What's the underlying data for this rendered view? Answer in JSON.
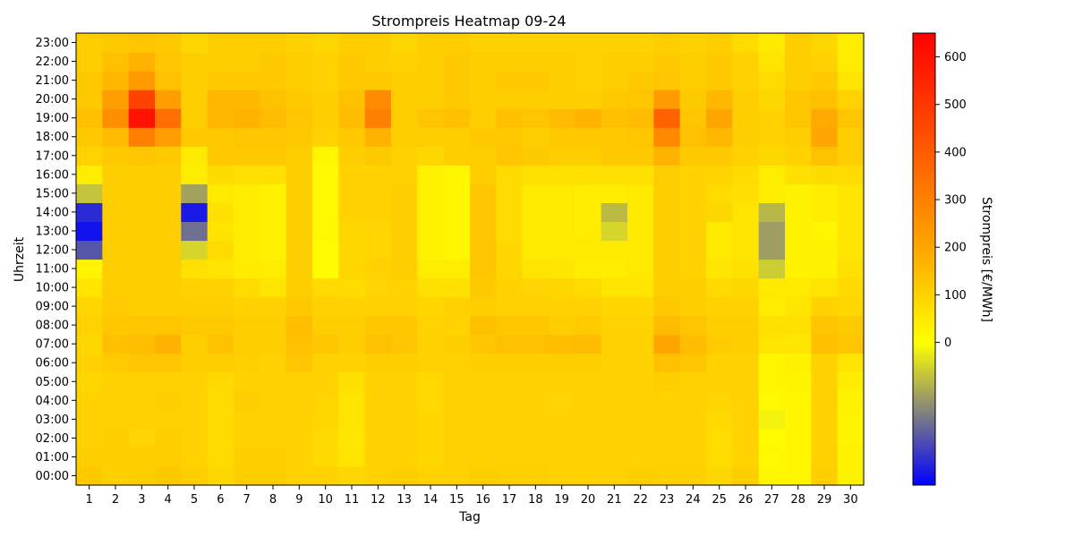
{
  "chart_data": {
    "type": "heatmap",
    "title": "Strompreis Heatmap 09-24",
    "xlabel": "Tag",
    "ylabel": "Uhrzeit",
    "colorbar_label": "Strompreis [€/MWh]",
    "x_categories": [
      "1",
      "2",
      "3",
      "4",
      "5",
      "6",
      "7",
      "8",
      "9",
      "10",
      "11",
      "12",
      "13",
      "14",
      "15",
      "16",
      "17",
      "18",
      "19",
      "20",
      "21",
      "22",
      "23",
      "24",
      "25",
      "26",
      "27",
      "28",
      "29",
      "30"
    ],
    "y_categories": [
      "00:00",
      "01:00",
      "02:00",
      "03:00",
      "04:00",
      "05:00",
      "06:00",
      "07:00",
      "08:00",
      "09:00",
      "10:00",
      "11:00",
      "12:00",
      "13:00",
      "14:00",
      "15:00",
      "16:00",
      "17:00",
      "18:00",
      "19:00",
      "20:00",
      "21:00",
      "22:00",
      "23:00"
    ],
    "value_range": [
      -300,
      650
    ],
    "colorbar_ticks": [
      0,
      100,
      200,
      300,
      400,
      500,
      600
    ],
    "colorscale": [
      {
        "value": -300,
        "color": "#0000ff"
      },
      {
        "value": -150,
        "color": "#808080"
      },
      {
        "value": 0,
        "color": "#ffff00"
      },
      {
        "value": 200,
        "color": "#ffa500"
      },
      {
        "value": 650,
        "color": "#ff0000"
      }
    ],
    "values": [
      [
        120,
        105,
        110,
        120,
        110,
        90,
        110,
        110,
        100,
        100,
        90,
        100,
        110,
        100,
        100,
        110,
        105,
        105,
        100,
        100,
        100,
        110,
        105,
        105,
        90,
        110,
        20,
        20,
        110,
        30
      ],
      [
        110,
        110,
        110,
        110,
        100,
        80,
        110,
        110,
        100,
        85,
        60,
        100,
        100,
        90,
        100,
        100,
        100,
        100,
        100,
        100,
        100,
        100,
        100,
        100,
        80,
        100,
        15,
        20,
        100,
        30
      ],
      [
        100,
        110,
        95,
        110,
        100,
        80,
        100,
        100,
        100,
        85,
        55,
        100,
        100,
        90,
        100,
        100,
        100,
        100,
        100,
        100,
        100,
        100,
        100,
        100,
        75,
        100,
        10,
        20,
        100,
        25
      ],
      [
        100,
        100,
        100,
        100,
        100,
        80,
        100,
        100,
        100,
        90,
        60,
        100,
        100,
        90,
        100,
        100,
        100,
        100,
        100,
        100,
        100,
        100,
        100,
        100,
        85,
        100,
        -15,
        20,
        100,
        25
      ],
      [
        100,
        100,
        100,
        110,
        100,
        80,
        110,
        100,
        100,
        95,
        60,
        100,
        100,
        85,
        100,
        100,
        100,
        100,
        95,
        100,
        100,
        100,
        100,
        100,
        95,
        100,
        15,
        20,
        100,
        30
      ],
      [
        90,
        100,
        100,
        100,
        100,
        85,
        100,
        100,
        100,
        100,
        70,
        100,
        100,
        85,
        100,
        100,
        100,
        100,
        100,
        100,
        100,
        100,
        110,
        100,
        100,
        100,
        20,
        25,
        100,
        40
      ],
      [
        100,
        115,
        130,
        130,
        110,
        110,
        105,
        100,
        130,
        100,
        100,
        110,
        110,
        100,
        100,
        110,
        110,
        110,
        110,
        110,
        100,
        100,
        140,
        130,
        100,
        100,
        20,
        30,
        100,
        60
      ],
      [
        90,
        140,
        145,
        170,
        110,
        135,
        110,
        110,
        140,
        125,
        110,
        140,
        130,
        100,
        110,
        130,
        140,
        140,
        145,
        150,
        100,
        100,
        200,
        150,
        115,
        110,
        60,
        55,
        140,
        130
      ],
      [
        100,
        125,
        130,
        130,
        120,
        120,
        110,
        110,
        145,
        110,
        110,
        125,
        125,
        100,
        100,
        140,
        125,
        125,
        110,
        115,
        100,
        100,
        150,
        130,
        110,
        110,
        70,
        70,
        130,
        120
      ],
      [
        90,
        115,
        110,
        110,
        110,
        110,
        100,
        100,
        120,
        100,
        100,
        100,
        100,
        90,
        100,
        110,
        100,
        100,
        100,
        100,
        90,
        90,
        120,
        110,
        100,
        100,
        40,
        60,
        100,
        90
      ],
      [
        60,
        110,
        110,
        110,
        100,
        100,
        80,
        60,
        110,
        85,
        80,
        95,
        100,
        70,
        70,
        120,
        100,
        95,
        90,
        80,
        60,
        60,
        110,
        110,
        85,
        90,
        50,
        50,
        60,
        85
      ],
      [
        25,
        110,
        110,
        110,
        70,
        60,
        45,
        40,
        110,
        10,
        90,
        100,
        110,
        40,
        40,
        130,
        90,
        60,
        55,
        40,
        40,
        50,
        110,
        100,
        55,
        70,
        -60,
        30,
        30,
        70
      ],
      [
        -200,
        110,
        110,
        110,
        -50,
        80,
        40,
        30,
        110,
        10,
        90,
        95,
        110,
        30,
        20,
        130,
        90,
        50,
        50,
        50,
        50,
        50,
        110,
        100,
        50,
        60,
        -115,
        30,
        30,
        60
      ],
      [
        -280,
        110,
        110,
        110,
        -170,
        60,
        40,
        30,
        110,
        15,
        90,
        95,
        110,
        30,
        20,
        130,
        80,
        50,
        50,
        40,
        -50,
        50,
        110,
        100,
        50,
        60,
        -115,
        30,
        20,
        60
      ],
      [
        -250,
        110,
        110,
        110,
        -270,
        70,
        40,
        30,
        110,
        15,
        100,
        100,
        110,
        30,
        20,
        130,
        80,
        50,
        50,
        40,
        -80,
        50,
        110,
        100,
        90,
        60,
        -85,
        30,
        40,
        60
      ],
      [
        -70,
        110,
        110,
        110,
        -110,
        50,
        40,
        30,
        110,
        15,
        100,
        100,
        110,
        30,
        20,
        130,
        80,
        50,
        50,
        40,
        40,
        50,
        110,
        100,
        80,
        70,
        40,
        30,
        40,
        60
      ],
      [
        40,
        110,
        110,
        110,
        40,
        80,
        70,
        70,
        110,
        15,
        100,
        100,
        100,
        30,
        20,
        110,
        80,
        70,
        70,
        70,
        70,
        70,
        110,
        100,
        100,
        80,
        40,
        70,
        80,
        80
      ],
      [
        100,
        120,
        130,
        120,
        50,
        120,
        120,
        120,
        110,
        20,
        110,
        120,
        100,
        90,
        110,
        110,
        130,
        120,
        110,
        110,
        120,
        120,
        170,
        120,
        120,
        100,
        90,
        100,
        140,
        110
      ],
      [
        120,
        150,
        300,
        220,
        120,
        120,
        130,
        130,
        120,
        100,
        120,
        170,
        110,
        110,
        110,
        120,
        120,
        110,
        120,
        120,
        120,
        130,
        280,
        140,
        160,
        110,
        100,
        110,
        200,
        110
      ],
      [
        140,
        260,
        600,
        350,
        110,
        160,
        170,
        150,
        130,
        110,
        150,
        300,
        110,
        130,
        140,
        110,
        140,
        130,
        150,
        170,
        140,
        150,
        380,
        130,
        200,
        110,
        100,
        130,
        190,
        130
      ],
      [
        120,
        220,
        470,
        220,
        110,
        160,
        160,
        140,
        120,
        110,
        140,
        270,
        110,
        110,
        120,
        110,
        110,
        110,
        110,
        110,
        120,
        130,
        230,
        120,
        160,
        110,
        90,
        130,
        140,
        100
      ],
      [
        120,
        160,
        230,
        140,
        110,
        120,
        120,
        120,
        110,
        100,
        120,
        120,
        110,
        110,
        120,
        110,
        120,
        120,
        110,
        100,
        110,
        120,
        130,
        110,
        120,
        100,
        80,
        110,
        120,
        60
      ],
      [
        110,
        140,
        170,
        130,
        110,
        110,
        110,
        120,
        110,
        100,
        120,
        110,
        100,
        110,
        120,
        110,
        110,
        110,
        110,
        100,
        110,
        110,
        120,
        110,
        120,
        100,
        60,
        110,
        100,
        40
      ],
      [
        110,
        120,
        130,
        120,
        90,
        110,
        110,
        110,
        100,
        90,
        110,
        110,
        90,
        110,
        110,
        100,
        100,
        100,
        100,
        100,
        100,
        100,
        110,
        100,
        110,
        80,
        50,
        110,
        90,
        40
      ]
    ]
  }
}
